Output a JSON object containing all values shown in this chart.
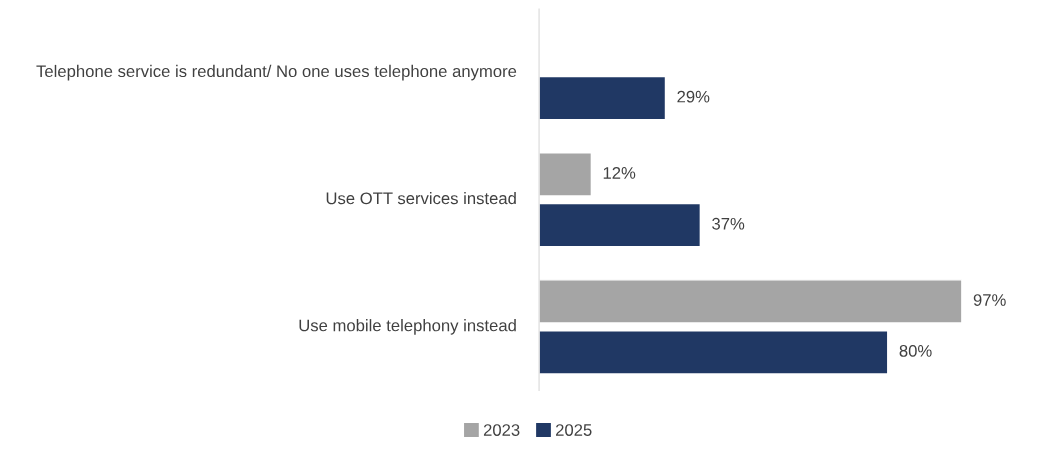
{
  "chart_data": {
    "type": "bar",
    "orientation": "horizontal",
    "categories": [
      "Telephone service is redundant/ No one uses telephone anymore",
      "Use OTT services instead",
      "Use mobile telephony instead"
    ],
    "series": [
      {
        "name": "2023",
        "color": "#a5a5a5",
        "values": [
          null,
          12,
          97
        ],
        "value_labels": [
          null,
          "12%",
          "97%"
        ]
      },
      {
        "name": "2025",
        "color": "#203864",
        "values": [
          29,
          37,
          80
        ],
        "value_labels": [
          "29%",
          "37%",
          "80%"
        ]
      }
    ],
    "legend": "bottom",
    "grid": false,
    "tick_labels": "y"
  }
}
